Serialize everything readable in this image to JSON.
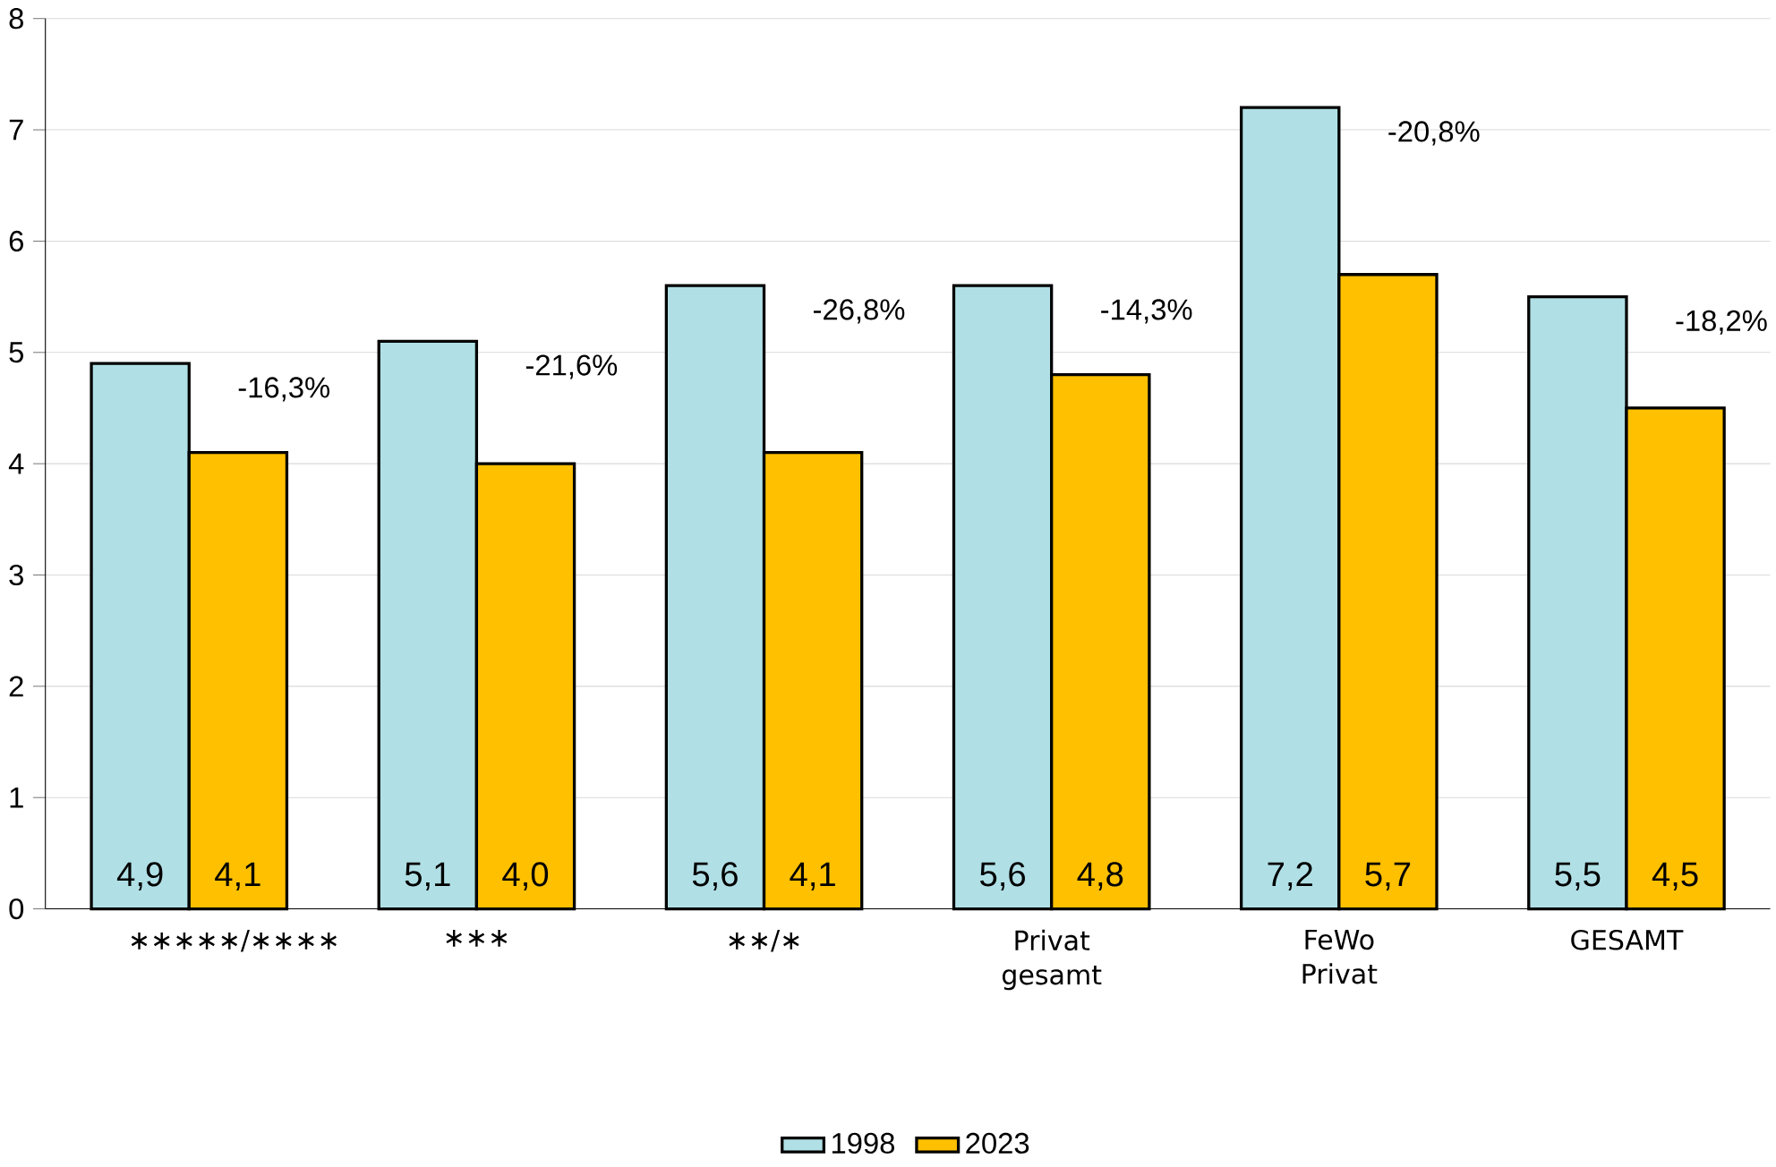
{
  "chart_data": {
    "type": "bar",
    "categories": [
      "∗∗∗∗∗/∗∗∗∗",
      "∗∗∗",
      "∗∗/∗",
      "Privat gesamt",
      "FeWo Privat",
      "GESAMT"
    ],
    "series": [
      {
        "name": "1998",
        "color": "#b0e0e6",
        "values": [
          4.9,
          5.1,
          5.6,
          5.6,
          7.2,
          5.5
        ],
        "value_labels": [
          "4,9",
          "5,1",
          "5,6",
          "5,6",
          "7,2",
          "5,5"
        ]
      },
      {
        "name": "2023",
        "color": "#ffc000",
        "values": [
          4.1,
          4.0,
          4.1,
          4.8,
          5.7,
          4.5
        ],
        "value_labels": [
          "4,1",
          "4,0",
          "4,1",
          "4,8",
          "5,7",
          "4,5"
        ]
      }
    ],
    "annotations": [
      "-16,3%",
      "-21,6%",
      "-26,8%",
      "-14,3%",
      "-20,8%",
      "-18,2%"
    ],
    "ylim": [
      0,
      8
    ],
    "yticks": [
      0,
      1,
      2,
      3,
      4,
      5,
      6,
      7,
      8
    ],
    "grid": "y",
    "legend": "bottom"
  }
}
